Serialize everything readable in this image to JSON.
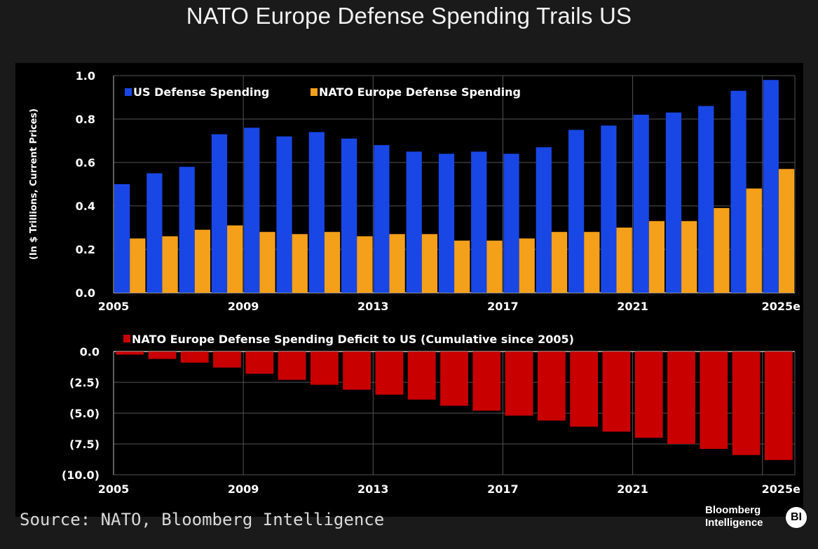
{
  "title": "NATO Europe Defense Spending Trails US",
  "source": "Source: NATO, Bloomberg Intelligence",
  "brand": {
    "line1": "Bloomberg",
    "line2": "Intelligence",
    "badge": "BI"
  },
  "colors": {
    "us": "#1947e6",
    "europe": "#f5a01a",
    "deficit": "#c80000",
    "panel": "#000000",
    "background": "#1a1a1a",
    "grid": "#555555"
  },
  "chart_data": [
    {
      "type": "bar",
      "title": "",
      "ylabel": "(In $ Trillions, Current Prices)",
      "xlabel": "",
      "ylim": [
        0,
        1.0
      ],
      "yticks": [
        0.0,
        0.2,
        0.4,
        0.6,
        0.8,
        1.0
      ],
      "ytick_labels": [
        "0.0",
        "0.2",
        "0.4",
        "0.6",
        "0.8",
        "1.0"
      ],
      "categories": [
        "2005",
        "2006",
        "2007",
        "2008",
        "2009",
        "2010",
        "2011",
        "2012",
        "2013",
        "2014",
        "2015",
        "2016",
        "2017",
        "2018",
        "2019",
        "2020",
        "2021",
        "2022",
        "2023",
        "2024",
        "2025e"
      ],
      "xtick_labels": [
        "2005",
        "2009",
        "2013",
        "2017",
        "2021",
        "2025e"
      ],
      "legend": "top-left",
      "series": [
        {
          "name": "US Defense Spending",
          "color": "#1947e6",
          "values": [
            0.5,
            0.55,
            0.58,
            0.73,
            0.76,
            0.72,
            0.74,
            0.71,
            0.68,
            0.65,
            0.64,
            0.65,
            0.64,
            0.67,
            0.75,
            0.77,
            0.82,
            0.83,
            0.86,
            0.93,
            0.98
          ]
        },
        {
          "name": "NATO Europe Defense Spending",
          "color": "#f5a01a",
          "values": [
            0.25,
            0.26,
            0.29,
            0.31,
            0.28,
            0.27,
            0.28,
            0.26,
            0.27,
            0.27,
            0.24,
            0.24,
            0.25,
            0.28,
            0.28,
            0.3,
            0.33,
            0.33,
            0.39,
            0.48,
            0.57
          ]
        }
      ]
    },
    {
      "type": "bar",
      "title": "",
      "ylim": [
        -10.0,
        0.0
      ],
      "yticks": [
        0.0,
        -2.5,
        -5.0,
        -7.5,
        -10.0
      ],
      "ytick_labels": [
        "0.0",
        "(2.5)",
        "(5.0)",
        "(7.5)",
        "(10.0)"
      ],
      "categories": [
        "2005",
        "2006",
        "2007",
        "2008",
        "2009",
        "2010",
        "2011",
        "2012",
        "2013",
        "2014",
        "2015",
        "2016",
        "2017",
        "2018",
        "2019",
        "2020",
        "2021",
        "2022",
        "2023",
        "2024",
        "2025e"
      ],
      "xtick_labels": [
        "2005",
        "2009",
        "2013",
        "2017",
        "2021",
        "2025e"
      ],
      "legend": "top-left",
      "series": [
        {
          "name": "NATO Europe Defense Spending Deficit to US (Cumulative since 2005)",
          "color": "#c80000",
          "values": [
            -0.25,
            -0.6,
            -0.9,
            -1.3,
            -1.8,
            -2.3,
            -2.7,
            -3.1,
            -3.5,
            -3.9,
            -4.4,
            -4.8,
            -5.2,
            -5.6,
            -6.1,
            -6.5,
            -7.0,
            -7.5,
            -7.9,
            -8.4,
            -8.8
          ]
        }
      ]
    }
  ]
}
